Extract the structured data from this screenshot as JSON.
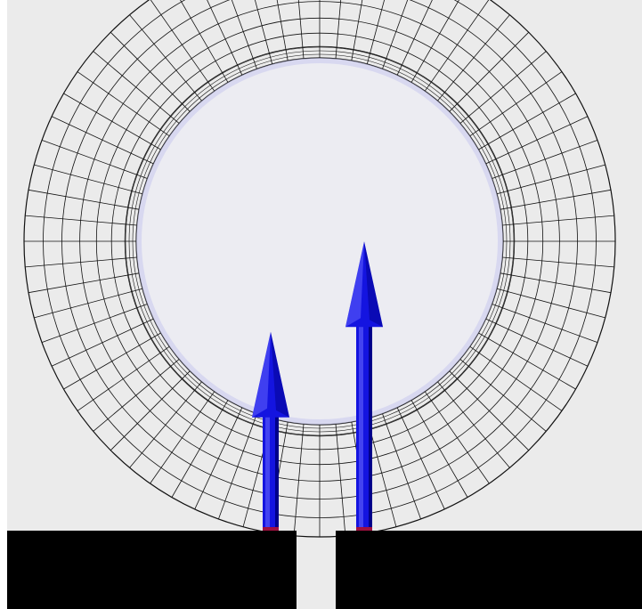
{
  "scene": {
    "description_visible_text": "",
    "torus": {
      "radial_segments": 72,
      "tube_rings": 7,
      "wire_color": "#111111",
      "inner_glow_color": "#c9c9ee"
    },
    "arrows": [
      {
        "name": "left-arrow",
        "height_fraction": 0.55
      },
      {
        "name": "right-arrow",
        "height_fraction": 0.8
      }
    ],
    "colors": {
      "background": "#ebebeb",
      "frame_left": "#ffffff",
      "arrow_body": "#1414e0",
      "arrow_highlight": "#6a6aff",
      "arrow_shadow": "#00008a",
      "ground": "#000000",
      "slot": "#ebebeb",
      "arrow_base_tint": "#a01040"
    }
  }
}
